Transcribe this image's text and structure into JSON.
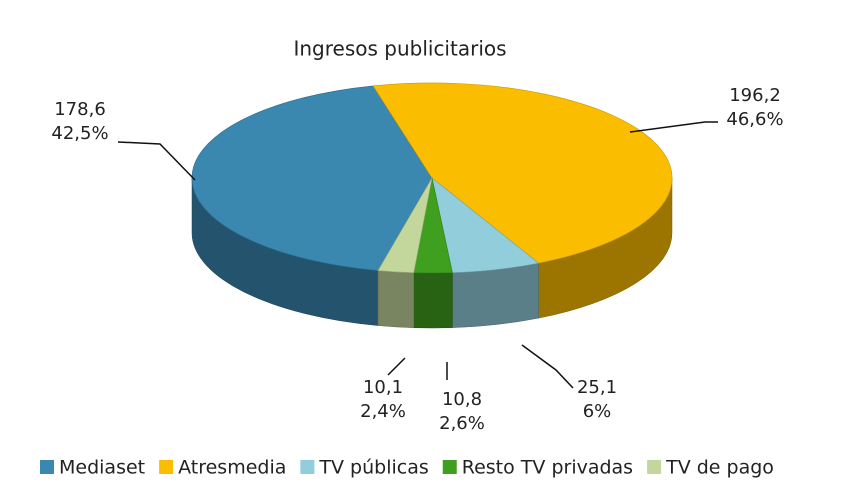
{
  "chart_data": {
    "type": "pie3d",
    "title": "Ingresos publicitarios",
    "categories": [
      "Mediaset",
      "Atresmedia",
      "TV públicas",
      "Resto TV privadas",
      "TV de pago"
    ],
    "values": [
      178.6,
      196.2,
      25.1,
      10.8,
      10.1
    ],
    "value_labels": [
      "178,6",
      "196,2",
      "25,1",
      "10,8",
      "10,1"
    ],
    "percentages": [
      42.5,
      46.6,
      6,
      2.6,
      2.4
    ],
    "percentage_labels": [
      "42,5%",
      "46,6%",
      "6%",
      "2,6%",
      "2,4%"
    ],
    "colors": [
      "#3a87b0",
      "#fbbd00",
      "#92cddc",
      "#3f9f1f",
      "#c3d69b"
    ],
    "legend": "bottom"
  }
}
